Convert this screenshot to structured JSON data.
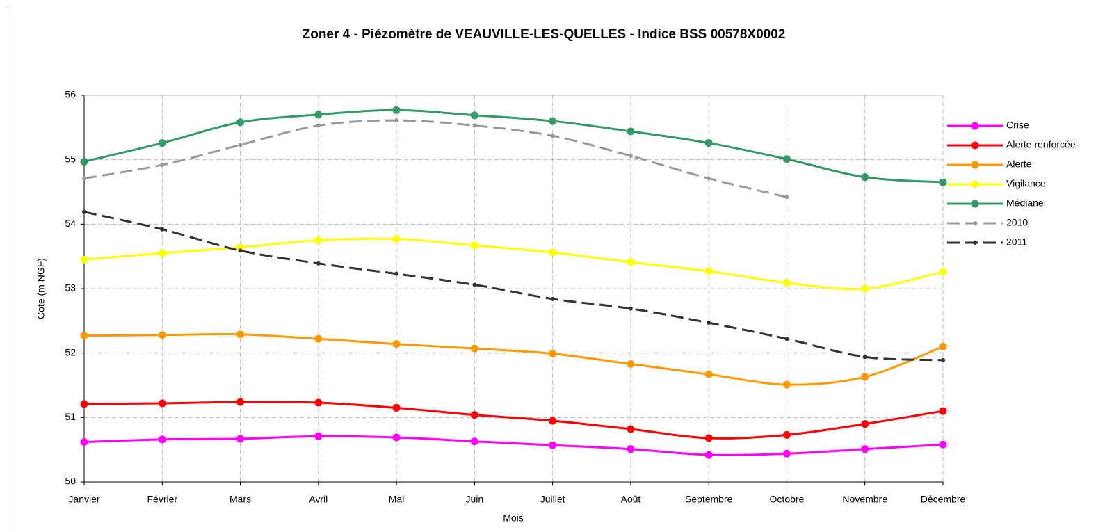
{
  "chart_data": {
    "type": "line",
    "title": "Zoner 4 - Piézomètre de VEAUVILLE-LES-QUELLES - Indice BSS 00578X0002",
    "x_label": "Mois",
    "y_label": "Cote (m NGF)",
    "categories": [
      "Janvier",
      "Février",
      "Mars",
      "Avril",
      "Mai",
      "Juin",
      "Juillet",
      "Août",
      "Septembre",
      "Octobre",
      "Novembre",
      "Décembre"
    ],
    "ylim": [
      50,
      56
    ],
    "yticks": [
      50,
      51,
      52,
      53,
      54,
      55,
      56
    ],
    "grid": true,
    "legend": "right",
    "series": [
      {
        "name": "Crise",
        "color": "#ff00ff",
        "dashed": false,
        "values": [
          50.62,
          50.66,
          50.67,
          50.71,
          50.69,
          50.63,
          50.57,
          50.51,
          50.42,
          50.44,
          50.51,
          50.58
        ]
      },
      {
        "name": "Alerte renforcée",
        "color": "#ff0000",
        "dashed": false,
        "values": [
          51.21,
          51.22,
          51.24,
          51.23,
          51.15,
          51.04,
          50.95,
          50.82,
          50.68,
          50.73,
          50.9,
          51.1
        ]
      },
      {
        "name": "Alerte",
        "color": "#ff9900",
        "dashed": false,
        "values": [
          52.27,
          52.28,
          52.29,
          52.22,
          52.14,
          52.07,
          51.99,
          51.83,
          51.67,
          51.51,
          51.63,
          52.1
        ]
      },
      {
        "name": "Vigilance",
        "color": "#ffff00",
        "dashed": false,
        "values": [
          53.45,
          53.55,
          53.64,
          53.75,
          53.77,
          53.67,
          53.56,
          53.41,
          53.27,
          53.09,
          53.0,
          53.26
        ]
      },
      {
        "name": "Médiane",
        "color": "#339966",
        "dashed": false,
        "values": [
          54.97,
          55.26,
          55.58,
          55.7,
          55.77,
          55.69,
          55.6,
          55.44,
          55.26,
          55.01,
          54.73,
          54.65
        ]
      },
      {
        "name": "2010",
        "color": "#999999",
        "dashed": true,
        "values": [
          54.71,
          54.92,
          55.23,
          55.53,
          55.61,
          55.53,
          55.37,
          55.06,
          54.71,
          54.42,
          null,
          null
        ]
      },
      {
        "name": "2011",
        "color": "#333333",
        "dashed": true,
        "values": [
          54.19,
          53.92,
          53.59,
          53.39,
          53.23,
          53.06,
          52.84,
          52.69,
          52.47,
          52.22,
          51.94,
          51.89
        ]
      }
    ]
  }
}
